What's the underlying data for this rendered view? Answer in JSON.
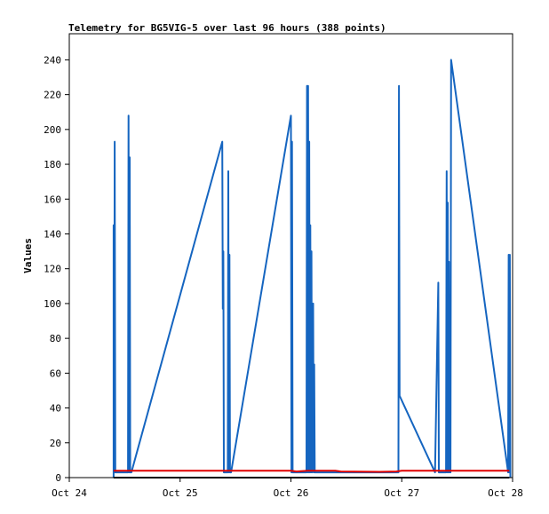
{
  "chart_data": {
    "type": "line",
    "title": "Telemetry for BG5VIG-5 over last 96 hours (388 points)",
    "ylabel": "Values",
    "xlabel": "",
    "xlim": [
      "Oct 24",
      "Oct 28"
    ],
    "ylim": [
      0,
      255
    ],
    "grid": false,
    "x_ticks": [
      "Oct 24",
      "Oct 25",
      "Oct 26",
      "Oct 27",
      "Oct 28"
    ],
    "y_ticks": [
      0,
      20,
      40,
      60,
      80,
      100,
      120,
      140,
      160,
      180,
      200,
      220,
      240
    ],
    "x_unit": "days since Oct 24",
    "series": [
      {
        "color": "#1565c0",
        "points": [
          [
            0.4,
            0
          ],
          [
            0.4,
            145
          ],
          [
            0.405,
            3
          ],
          [
            0.41,
            193
          ],
          [
            0.415,
            3
          ],
          [
            0.42,
            3
          ],
          [
            0.53,
            3
          ],
          [
            0.535,
            208
          ],
          [
            0.54,
            3
          ],
          [
            0.545,
            184
          ],
          [
            0.55,
            3
          ],
          [
            0.56,
            3
          ],
          [
            1.38,
            193
          ],
          [
            1.385,
            97
          ],
          [
            1.39,
            130
          ],
          [
            1.395,
            3
          ],
          [
            1.43,
            3
          ],
          [
            1.435,
            176
          ],
          [
            1.44,
            3
          ],
          [
            1.445,
            128
          ],
          [
            1.45,
            3
          ],
          [
            1.46,
            3
          ],
          [
            2.0,
            208
          ],
          [
            2.005,
            3
          ],
          [
            2.01,
            193
          ],
          [
            2.015,
            3
          ],
          [
            2.14,
            3
          ],
          [
            2.145,
            225
          ],
          [
            2.15,
            3
          ],
          [
            2.155,
            225
          ],
          [
            2.16,
            3
          ],
          [
            2.165,
            193
          ],
          [
            2.17,
            3
          ],
          [
            2.175,
            145
          ],
          [
            2.18,
            3
          ],
          [
            2.185,
            130
          ],
          [
            2.19,
            3
          ],
          [
            2.2,
            100
          ],
          [
            2.205,
            3
          ],
          [
            2.21,
            65
          ],
          [
            2.215,
            3
          ],
          [
            2.97,
            3
          ],
          [
            2.975,
            225
          ],
          [
            2.98,
            47
          ],
          [
            3.3,
            3
          ],
          [
            3.33,
            112
          ],
          [
            3.335,
            3
          ],
          [
            3.4,
            3
          ],
          [
            3.405,
            176
          ],
          [
            3.41,
            3
          ],
          [
            3.415,
            158
          ],
          [
            3.42,
            3
          ],
          [
            3.425,
            124
          ],
          [
            3.43,
            3
          ],
          [
            3.435,
            88
          ],
          [
            3.44,
            3
          ],
          [
            3.445,
            240
          ],
          [
            3.96,
            3
          ],
          [
            3.965,
            128
          ],
          [
            3.97,
            3
          ],
          [
            3.975,
            128
          ],
          [
            3.98,
            0
          ]
        ]
      },
      {
        "color": "#e00000",
        "points": [
          [
            0.4,
            4
          ],
          [
            0.8,
            4
          ],
          [
            1.2,
            4
          ],
          [
            1.6,
            4
          ],
          [
            2.0,
            4
          ],
          [
            2.05,
            3.5
          ],
          [
            2.15,
            4
          ],
          [
            2.4,
            4
          ],
          [
            2.45,
            3.5
          ],
          [
            2.8,
            3.3
          ],
          [
            2.95,
            3.5
          ],
          [
            3.0,
            4
          ],
          [
            3.4,
            4
          ],
          [
            3.8,
            4
          ],
          [
            3.97,
            4
          ]
        ]
      },
      {
        "color": "#000000",
        "points": [
          [
            0.4,
            0
          ],
          [
            3.97,
            0
          ]
        ]
      }
    ]
  }
}
